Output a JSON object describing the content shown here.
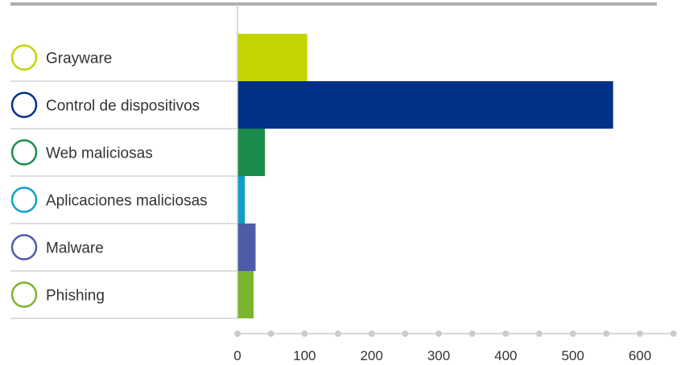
{
  "chart_data": {
    "type": "bar",
    "orientation": "horizontal",
    "categories": [
      "Grayware",
      "Control de dispositivos",
      "Web maliciosas",
      "Aplicaciones maliciosas",
      "Malware",
      "Phishing"
    ],
    "values": [
      104,
      560,
      41,
      11,
      27,
      24
    ],
    "colors": [
      "#c3d400",
      "#003087",
      "#1c8c4c",
      "#0f9fc4",
      "#4f5aa8",
      "#7ab52e"
    ],
    "xlim": [
      0,
      650
    ],
    "x_ticks": [
      0,
      100,
      200,
      300,
      400,
      500,
      600
    ],
    "x_minor_step": 50,
    "title": "",
    "xlabel": "",
    "ylabel": "",
    "legend": "left-markers",
    "grid": false
  }
}
